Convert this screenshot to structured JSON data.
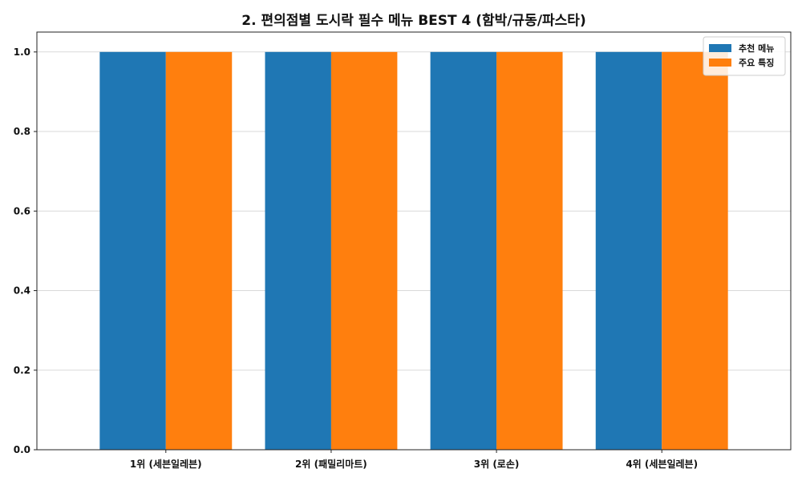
{
  "chart_data": {
    "type": "bar",
    "title": "2. 편의점별 도시락 필수 메뉴 BEST 4 (함박/규동/파스타)",
    "xlabel": "",
    "ylabel": "",
    "categories": [
      "1위 (세븐일레븐)",
      "2위 (패밀리마트)",
      "3위 (로손)",
      "4위 (세븐일레븐)"
    ],
    "series": [
      {
        "name": "추천 메뉴",
        "values": [
          1.0,
          1.0,
          1.0,
          1.0
        ],
        "color": "#1f77b4"
      },
      {
        "name": "주요 특징",
        "values": [
          1.0,
          1.0,
          1.0,
          1.0
        ],
        "color": "#ff7f0e"
      }
    ],
    "ylim": [
      0,
      1.05
    ],
    "yticks": [
      0.0,
      0.2,
      0.4,
      0.6,
      0.8,
      1.0
    ],
    "ytick_labels": [
      "0.0",
      "0.2",
      "0.4",
      "0.6",
      "0.8",
      "1.0"
    ],
    "grid": true,
    "legend_position": "top-right"
  }
}
